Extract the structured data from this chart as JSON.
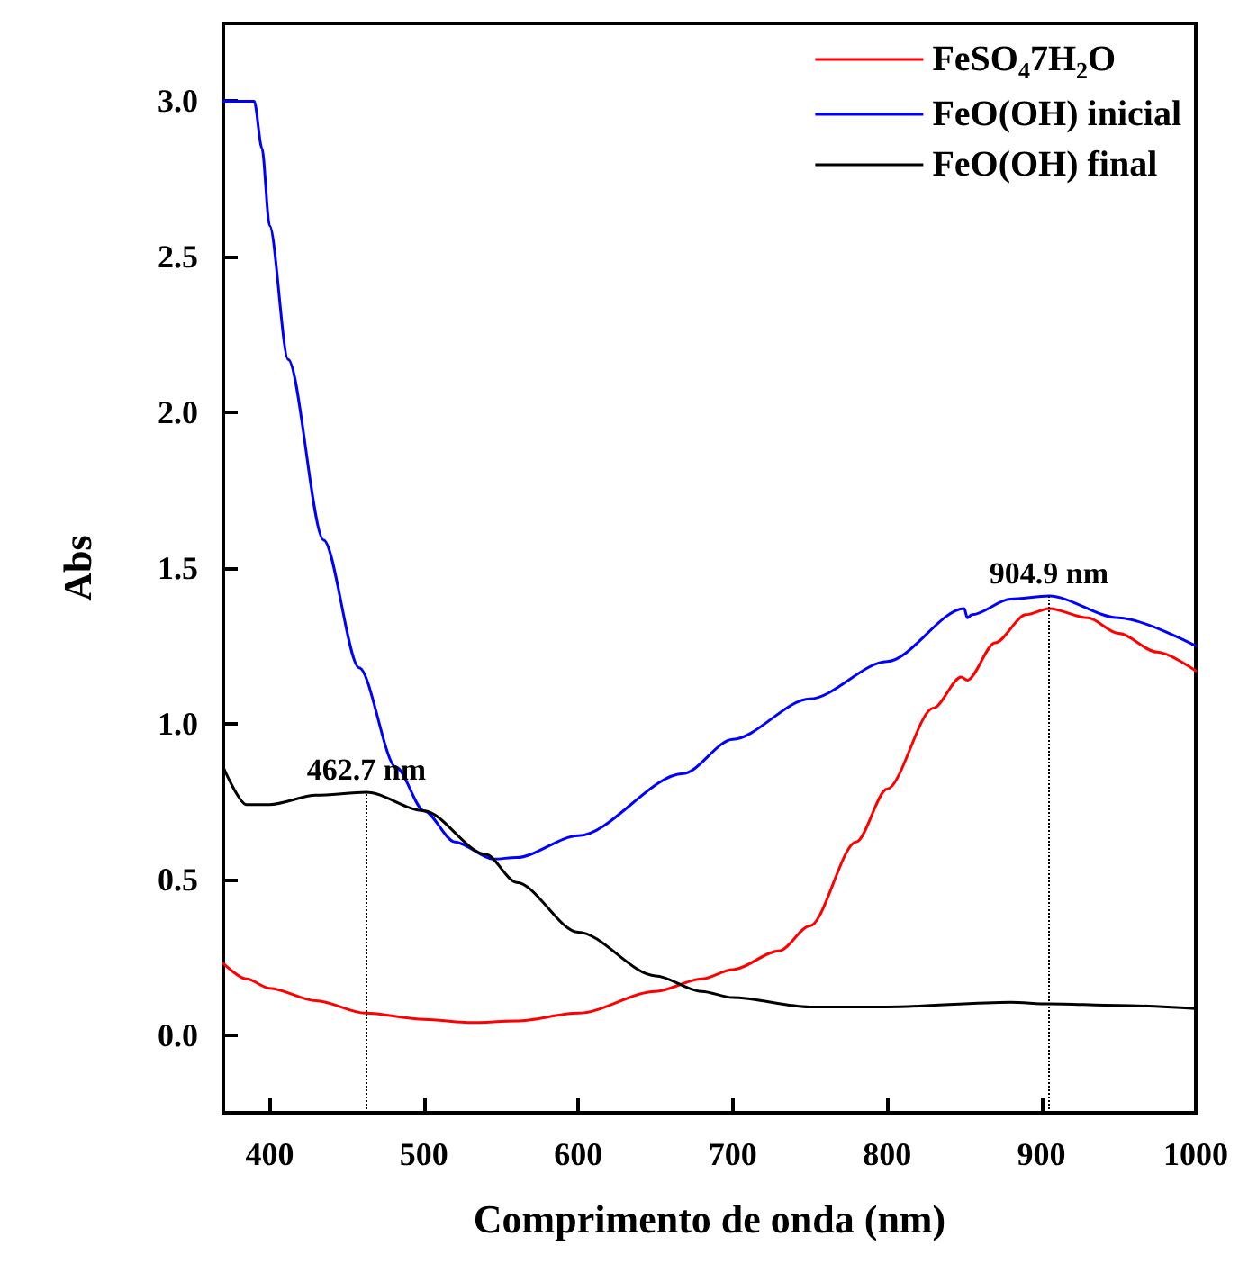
{
  "chart_data": {
    "type": "line",
    "xlabel": "Comprimento de onda (nm)",
    "ylabel": "Abs",
    "xlim": [
      370,
      1000
    ],
    "xticks": [
      400,
      500,
      600,
      700,
      800,
      900,
      1000
    ],
    "ylim": [
      -0.25,
      3.25
    ],
    "yticks": [
      {
        "value": 0,
        "label": "0.0"
      },
      {
        "value": 0.5,
        "label": "0.5"
      },
      {
        "value": 1,
        "label": "1.0"
      },
      {
        "value": 1.5,
        "label": "1.5"
      },
      {
        "value": 2,
        "label": "2.0"
      },
      {
        "value": 2.5,
        "label": "2.5"
      },
      {
        "value": 3,
        "label": "3.0"
      }
    ],
    "grid": false,
    "legend": "top right",
    "marker": "none",
    "line_style": "solid",
    "series": [
      {
        "name": "FeSO$_{4}$7H$_{2}$O",
        "color": "#ff0000",
        "x": [
          370,
          385,
          400,
          430,
          462,
          500,
          530,
          560,
          600,
          650,
          680,
          700,
          730,
          750,
          780,
          800,
          830,
          848,
          852,
          870,
          890,
          905,
          930,
          950,
          975,
          1000
        ],
        "values": [
          0.23,
          0.18,
          0.15,
          0.11,
          0.07,
          0.05,
          0.04,
          0.045,
          0.07,
          0.14,
          0.18,
          0.21,
          0.27,
          0.35,
          0.62,
          0.79,
          1.05,
          1.15,
          1.14,
          1.26,
          1.35,
          1.37,
          1.34,
          1.29,
          1.23,
          1.17
        ]
      },
      {
        "name": "FeO(OH) inicial",
        "color": "#0000ff",
        "x": [
          370,
          390,
          395,
          400,
          412,
          435,
          458,
          482,
          500,
          520,
          545,
          560,
          600,
          668,
          700,
          750,
          800,
          850,
          852,
          855,
          880,
          905,
          950,
          1000
        ],
        "values": [
          3.0,
          3.0,
          2.85,
          2.6,
          2.17,
          1.59,
          1.18,
          0.86,
          0.72,
          0.62,
          0.565,
          0.57,
          0.64,
          0.84,
          0.95,
          1.08,
          1.2,
          1.37,
          1.34,
          1.35,
          1.4,
          1.41,
          1.34,
          1.25
        ]
      },
      {
        "name": "FeO(OH) final",
        "color": "#000000",
        "x": [
          370,
          385,
          400,
          430,
          462.7,
          500,
          540,
          560,
          600,
          650,
          680,
          700,
          750,
          800,
          880,
          905,
          950,
          1000
        ],
        "values": [
          0.86,
          0.74,
          0.74,
          0.77,
          0.78,
          0.72,
          0.58,
          0.49,
          0.33,
          0.19,
          0.14,
          0.12,
          0.09,
          0.09,
          0.105,
          0.1,
          0.095,
          0.085
        ]
      }
    ],
    "annotations": [
      {
        "text": "462.7 nm",
        "x": 462.7,
        "y": 0.78
      },
      {
        "text": "904.9 nm",
        "x": 904.9,
        "y": 1.41
      }
    ]
  }
}
